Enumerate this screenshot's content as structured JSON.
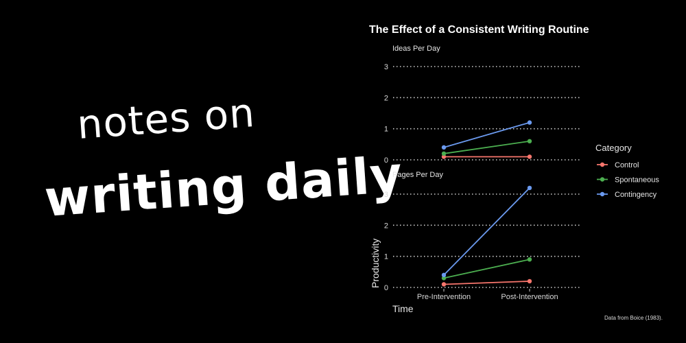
{
  "headline": {
    "line1": "notes on",
    "line2": "writing daily"
  },
  "chart_data": {
    "type": "line",
    "title": "The Effect of a Consistent Writing Routine",
    "xlabel": "Time",
    "ylabel": "Productivity",
    "categories": [
      "Pre-Intervention",
      "Post-Intervention"
    ],
    "ylim": [
      0,
      3
    ],
    "yticks": [
      0,
      1,
      2,
      3
    ],
    "grid": "horizontal dotted",
    "legend": {
      "title": "Category",
      "placement": "right"
    },
    "caption": "Data from Boice (1983).",
    "panels": [
      {
        "title": "Ideas Per Day",
        "series": [
          {
            "name": "Control",
            "color": "#f8766d",
            "values": [
              0.1,
              0.1
            ]
          },
          {
            "name": "Spontaneous",
            "color": "#4caf50",
            "values": [
              0.2,
              0.6
            ]
          },
          {
            "name": "Contingency",
            "color": "#6b9aef",
            "values": [
              0.4,
              1.2
            ]
          }
        ]
      },
      {
        "title": "Pages Per Day",
        "series": [
          {
            "name": "Control",
            "color": "#f8766d",
            "values": [
              0.1,
              0.2
            ]
          },
          {
            "name": "Spontaneous",
            "color": "#4caf50",
            "values": [
              0.3,
              0.9
            ]
          },
          {
            "name": "Contingency",
            "color": "#6b9aef",
            "values": [
              0.4,
              3.2
            ]
          }
        ]
      }
    ]
  }
}
